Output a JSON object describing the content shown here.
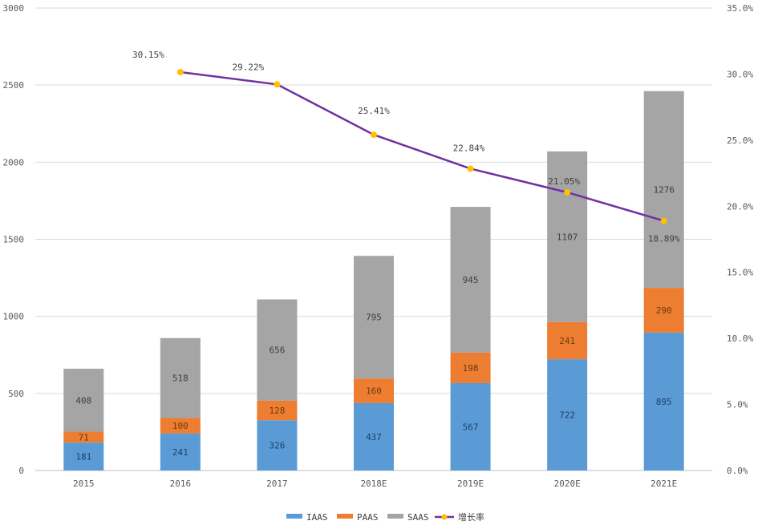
{
  "chart_data": {
    "type": "bar",
    "stacked": true,
    "categories": [
      "2015",
      "2016",
      "2017",
      "2018E",
      "2019E",
      "2020E",
      "2021E"
    ],
    "series": [
      {
        "name": "IAAS",
        "color": "#5b9bd5",
        "values": [
          181,
          241,
          326,
          437,
          567,
          722,
          895
        ]
      },
      {
        "name": "PAAS",
        "color": "#ed7d31",
        "values": [
          71,
          100,
          128,
          160,
          198,
          241,
          290
        ]
      },
      {
        "name": "SAAS",
        "color": "#a5a5a5",
        "values": [
          408,
          518,
          656,
          795,
          945,
          1107,
          1276
        ]
      }
    ],
    "line_series": {
      "name": "增长率",
      "color": "#7030a0",
      "marker_color": "#ffc000",
      "values": [
        null,
        30.15,
        29.22,
        25.41,
        22.84,
        21.05,
        18.89
      ],
      "labels": [
        "",
        "30.15%",
        "29.22%",
        "25.41%",
        "22.84%",
        "21.05%",
        "18.89%"
      ]
    },
    "y_left": {
      "min": 0,
      "max": 3000,
      "ticks": [
        "0",
        "500",
        "1000",
        "1500",
        "2000",
        "2500",
        "3000"
      ]
    },
    "y_right": {
      "min": 0,
      "max": 35,
      "ticks": [
        "0.0%",
        "5.0%",
        "10.0%",
        "15.0%",
        "20.0%",
        "25.0%",
        "30.0%",
        "35.0%"
      ]
    },
    "gridlines": true,
    "legend_position": "bottom",
    "legend": [
      "IAAS",
      "PAAS",
      "SAAS",
      "增长率"
    ]
  }
}
